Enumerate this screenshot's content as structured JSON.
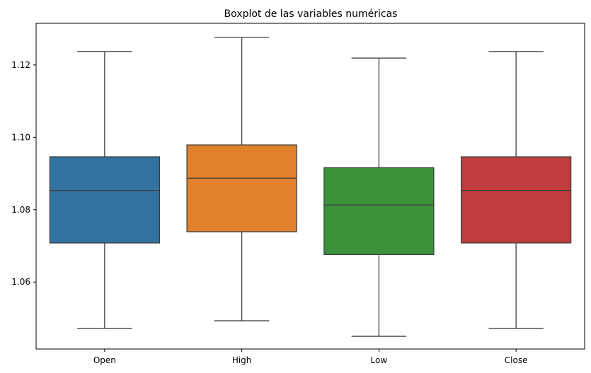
{
  "chart_data": {
    "type": "boxplot",
    "title": "Boxplot de las variables numéricas",
    "xlabel": "",
    "ylabel": "",
    "ylim": [
      1.0415,
      1.1315
    ],
    "yticks": [
      1.06,
      1.08,
      1.1,
      1.12
    ],
    "ytick_labels": [
      "1.06",
      "1.08",
      "1.10",
      "1.12"
    ],
    "grid": false,
    "categories": [
      "Open",
      "High",
      "Low",
      "Close"
    ],
    "boxes": [
      {
        "name": "Open",
        "min": 1.0472,
        "q1": 1.0708,
        "median": 1.0853,
        "q3": 1.0946,
        "max": 1.1237,
        "color": "#3274a1"
      },
      {
        "name": "High",
        "min": 1.0493,
        "q1": 1.0739,
        "median": 1.0887,
        "q3": 1.0979,
        "max": 1.1276,
        "color": "#e1812c"
      },
      {
        "name": "Low",
        "min": 1.045,
        "q1": 1.0676,
        "median": 1.0813,
        "q3": 1.0916,
        "max": 1.1219,
        "color": "#3a923a"
      },
      {
        "name": "Close",
        "min": 1.0472,
        "q1": 1.0708,
        "median": 1.0853,
        "q3": 1.0946,
        "max": 1.1237,
        "color": "#c03d3e"
      }
    ]
  }
}
